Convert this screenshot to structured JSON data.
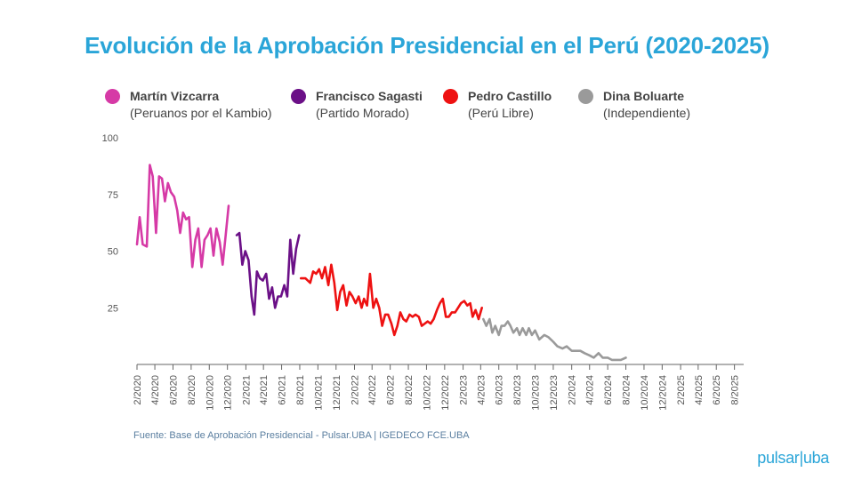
{
  "title": "Evolución de la Aprobación Presidencial en el Perú (2020-2025)",
  "legend": [
    {
      "name": "Martín Vizcarra",
      "party": "(Peruanos por el Kambio)",
      "color": "#d63aa6"
    },
    {
      "name": "Francisco Sagasti",
      "party": "(Partido Morado)",
      "color": "#6b1087"
    },
    {
      "name": "Pedro Castillo",
      "party": "(Perú Libre)",
      "color": "#ee1111"
    },
    {
      "name": "Dina Boluarte",
      "party": "(Independiente)",
      "color": "#9a9a9a"
    }
  ],
  "source": "Fuente: Base de Aprobación Presidencial - Pulsar.UBA | IGEDECO FCE.UBA",
  "brand": "pulsar|uba",
  "chart_data": {
    "type": "line",
    "title": "Evolución de la Aprobación Presidencial en el Perú (2020-2025)",
    "xlabel": "",
    "ylabel": "",
    "ylim": [
      0,
      100
    ],
    "yticks": [
      25,
      50,
      75,
      100
    ],
    "xlim": [
      "2020-02",
      "2025-09"
    ],
    "xticks": [
      "2/2020",
      "4/2020",
      "6/2020",
      "8/2020",
      "10/2020",
      "12/2020",
      "2/2021",
      "4/2021",
      "6/2021",
      "8/2021",
      "10/2021",
      "12/2021",
      "2/2022",
      "4/2022",
      "6/2022",
      "8/2022",
      "10/2022",
      "12/2022",
      "2/2023",
      "4/2023",
      "6/2023",
      "8/2023",
      "10/2023",
      "12/2023",
      "2/2024",
      "4/2024",
      "6/2024",
      "8/2024",
      "10/2024",
      "12/2024",
      "2/2025",
      "4/2025",
      "6/2025",
      "8/2025"
    ],
    "grid": false,
    "legend_position": "top",
    "series": [
      {
        "name": "Martín Vizcarra",
        "color": "#d63aa6",
        "points": [
          [
            "2020-02-01",
            53
          ],
          [
            "2020-02-10",
            65
          ],
          [
            "2020-02-20",
            53
          ],
          [
            "2020-03-05",
            52
          ],
          [
            "2020-03-15",
            88
          ],
          [
            "2020-03-25",
            83
          ],
          [
            "2020-04-05",
            58
          ],
          [
            "2020-04-15",
            83
          ],
          [
            "2020-04-25",
            82
          ],
          [
            "2020-05-05",
            72
          ],
          [
            "2020-05-15",
            80
          ],
          [
            "2020-05-25",
            76
          ],
          [
            "2020-06-05",
            74
          ],
          [
            "2020-06-15",
            68
          ],
          [
            "2020-06-25",
            58
          ],
          [
            "2020-07-05",
            67
          ],
          [
            "2020-07-15",
            64
          ],
          [
            "2020-07-25",
            65
          ],
          [
            "2020-08-05",
            43
          ],
          [
            "2020-08-15",
            55
          ],
          [
            "2020-08-25",
            60
          ],
          [
            "2020-09-05",
            43
          ],
          [
            "2020-09-15",
            55
          ],
          [
            "2020-09-25",
            57
          ],
          [
            "2020-10-05",
            60
          ],
          [
            "2020-10-15",
            48
          ],
          [
            "2020-10-25",
            60
          ],
          [
            "2020-11-05",
            54
          ],
          [
            "2020-11-15",
            44
          ],
          [
            "2020-11-25",
            57
          ],
          [
            "2020-12-05",
            70
          ]
        ]
      },
      {
        "name": "Francisco Sagasti",
        "color": "#6b1087",
        "points": [
          [
            "2021-01-01",
            57
          ],
          [
            "2021-01-10",
            58
          ],
          [
            "2021-01-20",
            44
          ],
          [
            "2021-01-30",
            50
          ],
          [
            "2021-02-10",
            46
          ],
          [
            "2021-02-20",
            30
          ],
          [
            "2021-03-01",
            22
          ],
          [
            "2021-03-10",
            41
          ],
          [
            "2021-03-20",
            38
          ],
          [
            "2021-03-30",
            37
          ],
          [
            "2021-04-10",
            40
          ],
          [
            "2021-04-20",
            29
          ],
          [
            "2021-04-30",
            34
          ],
          [
            "2021-05-10",
            25
          ],
          [
            "2021-05-20",
            30
          ],
          [
            "2021-05-30",
            30
          ],
          [
            "2021-06-10",
            35
          ],
          [
            "2021-06-20",
            30
          ],
          [
            "2021-06-30",
            55
          ],
          [
            "2021-07-10",
            40
          ],
          [
            "2021-07-20",
            51
          ],
          [
            "2021-07-30",
            57
          ]
        ]
      },
      {
        "name": "Pedro Castillo",
        "color": "#ee1111",
        "points": [
          [
            "2021-08-05",
            38
          ],
          [
            "2021-08-20",
            38
          ],
          [
            "2021-09-05",
            36
          ],
          [
            "2021-09-15",
            41
          ],
          [
            "2021-09-25",
            40
          ],
          [
            "2021-10-05",
            42
          ],
          [
            "2021-10-15",
            38
          ],
          [
            "2021-10-25",
            43
          ],
          [
            "2021-11-05",
            35
          ],
          [
            "2021-11-15",
            44
          ],
          [
            "2021-11-25",
            36
          ],
          [
            "2021-12-05",
            24
          ],
          [
            "2021-12-15",
            32
          ],
          [
            "2021-12-25",
            35
          ],
          [
            "2022-01-05",
            26
          ],
          [
            "2022-01-15",
            32
          ],
          [
            "2022-01-25",
            30
          ],
          [
            "2022-02-05",
            27
          ],
          [
            "2022-02-15",
            30
          ],
          [
            "2022-02-25",
            25
          ],
          [
            "2022-03-05",
            29
          ],
          [
            "2022-03-15",
            26
          ],
          [
            "2022-03-25",
            40
          ],
          [
            "2022-04-05",
            25
          ],
          [
            "2022-04-15",
            29
          ],
          [
            "2022-04-25",
            25
          ],
          [
            "2022-05-05",
            17
          ],
          [
            "2022-05-15",
            22
          ],
          [
            "2022-05-25",
            22
          ],
          [
            "2022-06-05",
            18
          ],
          [
            "2022-06-15",
            13
          ],
          [
            "2022-06-25",
            17
          ],
          [
            "2022-07-05",
            23
          ],
          [
            "2022-07-15",
            20
          ],
          [
            "2022-07-25",
            19
          ],
          [
            "2022-08-05",
            22
          ],
          [
            "2022-08-15",
            21
          ],
          [
            "2022-08-25",
            22
          ],
          [
            "2022-09-05",
            21
          ],
          [
            "2022-09-15",
            17
          ],
          [
            "2022-09-25",
            18
          ],
          [
            "2022-10-05",
            19
          ],
          [
            "2022-10-15",
            18
          ],
          [
            "2022-10-25",
            20
          ],
          [
            "2022-11-05",
            24
          ],
          [
            "2022-11-15",
            27
          ],
          [
            "2022-11-25",
            29
          ],
          [
            "2022-12-05",
            21
          ],
          [
            "2022-12-15",
            21
          ],
          [
            "2022-12-25",
            23
          ],
          [
            "2023-01-05",
            23
          ],
          [
            "2023-01-15",
            25
          ],
          [
            "2023-01-25",
            27
          ],
          [
            "2023-02-05",
            28
          ],
          [
            "2023-02-15",
            26
          ],
          [
            "2023-02-25",
            27
          ],
          [
            "2023-03-05",
            21
          ],
          [
            "2023-03-15",
            24
          ],
          [
            "2023-03-25",
            20
          ],
          [
            "2023-04-05",
            25
          ]
        ]
      },
      {
        "name": "Dina Boluarte",
        "color": "#9a9a9a",
        "points": [
          [
            "2023-04-10",
            20
          ],
          [
            "2023-04-20",
            17
          ],
          [
            "2023-05-01",
            20
          ],
          [
            "2023-05-10",
            14
          ],
          [
            "2023-05-20",
            17
          ],
          [
            "2023-06-01",
            13
          ],
          [
            "2023-06-10",
            17
          ],
          [
            "2023-06-20",
            17
          ],
          [
            "2023-07-01",
            19
          ],
          [
            "2023-07-10",
            17
          ],
          [
            "2023-07-20",
            14
          ],
          [
            "2023-08-01",
            16
          ],
          [
            "2023-08-10",
            13
          ],
          [
            "2023-08-20",
            16
          ],
          [
            "2023-09-01",
            13
          ],
          [
            "2023-09-10",
            16
          ],
          [
            "2023-09-20",
            13
          ],
          [
            "2023-10-01",
            15
          ],
          [
            "2023-10-15",
            11
          ],
          [
            "2023-11-01",
            13
          ],
          [
            "2023-11-15",
            12
          ],
          [
            "2023-12-01",
            10
          ],
          [
            "2023-12-15",
            8
          ],
          [
            "2024-01-01",
            7
          ],
          [
            "2024-01-15",
            8
          ],
          [
            "2024-02-01",
            6
          ],
          [
            "2024-02-15",
            6
          ],
          [
            "2024-03-01",
            6
          ],
          [
            "2024-03-15",
            5
          ],
          [
            "2024-04-01",
            4
          ],
          [
            "2024-04-15",
            3
          ],
          [
            "2024-05-01",
            5
          ],
          [
            "2024-05-15",
            3
          ],
          [
            "2024-06-01",
            3
          ],
          [
            "2024-06-15",
            2
          ],
          [
            "2024-07-01",
            2
          ],
          [
            "2024-07-15",
            2
          ],
          [
            "2024-08-01",
            3
          ]
        ]
      }
    ]
  }
}
